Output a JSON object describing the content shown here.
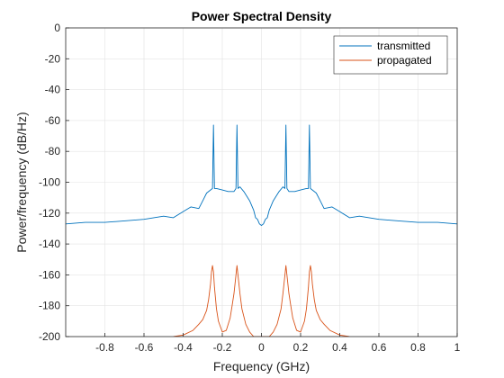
{
  "chart_data": {
    "type": "line",
    "title": "Power Spectral Density",
    "xlabel": "Frequency (GHz)",
    "ylabel": "Power/frequency (dB/Hz)",
    "xlim": [
      -1,
      1
    ],
    "ylim": [
      -200,
      0
    ],
    "x_ticks": [
      -0.8,
      -0.6,
      -0.4,
      -0.2,
      0,
      0.2,
      0.4,
      0.6,
      0.8,
      1
    ],
    "x_tick_labels": [
      "-0.8",
      "-0.6",
      "-0.4",
      "-0.2",
      "0",
      "0.2",
      "0.4",
      "0.6",
      "0.8",
      "1"
    ],
    "y_ticks": [
      0,
      -20,
      -40,
      -60,
      -80,
      -100,
      -120,
      -140,
      -160,
      -180,
      -200
    ],
    "y_tick_labels": [
      "0",
      "-20",
      "-40",
      "-60",
      "-80",
      "-100",
      "-120",
      "-140",
      "-160",
      "-180",
      "-200"
    ],
    "grid": true,
    "legend_position": "top-right",
    "series": [
      {
        "name": "transmitted",
        "color": "#0072BD",
        "x": [
          -1.0,
          -0.9,
          -0.8,
          -0.7,
          -0.6,
          -0.55,
          -0.5,
          -0.45,
          -0.4,
          -0.36,
          -0.32,
          -0.3,
          -0.28,
          -0.26,
          -0.25,
          -0.245,
          -0.24,
          -0.23,
          -0.2,
          -0.17,
          -0.14,
          -0.13,
          -0.125,
          -0.12,
          -0.11,
          -0.09,
          -0.06,
          -0.04,
          -0.03,
          -0.02,
          -0.01,
          0.0,
          0.01,
          0.02,
          0.03,
          0.04,
          0.06,
          0.09,
          0.11,
          0.12,
          0.125,
          0.13,
          0.14,
          0.17,
          0.2,
          0.23,
          0.24,
          0.245,
          0.25,
          0.26,
          0.28,
          0.3,
          0.32,
          0.36,
          0.4,
          0.45,
          0.5,
          0.55,
          0.6,
          0.7,
          0.8,
          0.9,
          1.0
        ],
        "y": [
          -127,
          -126,
          -126,
          -125,
          -124,
          -123,
          -122,
          -123,
          -119,
          -116,
          -117,
          -112,
          -107,
          -105,
          -104,
          -63,
          -104,
          -104,
          -105,
          -106,
          -106,
          -104,
          -63,
          -104,
          -103,
          -106,
          -112,
          -118,
          -123,
          -124,
          -127,
          -128,
          -127,
          -124,
          -123,
          -118,
          -112,
          -106,
          -103,
          -104,
          -63,
          -104,
          -106,
          -106,
          -105,
          -104,
          -104,
          -63,
          -104,
          -105,
          -107,
          -112,
          -117,
          -116,
          -119,
          -123,
          -122,
          -123,
          -124,
          -125,
          -126,
          -126,
          -127
        ]
      },
      {
        "name": "propagated",
        "color": "#D95319",
        "x": [
          -0.45,
          -0.4,
          -0.35,
          -0.32,
          -0.3,
          -0.28,
          -0.27,
          -0.26,
          -0.255,
          -0.25,
          -0.245,
          -0.24,
          -0.23,
          -0.22,
          -0.2,
          -0.18,
          -0.16,
          -0.15,
          -0.14,
          -0.13,
          -0.125,
          -0.12,
          -0.11,
          -0.1,
          -0.08,
          -0.06,
          -0.04,
          0.04,
          0.06,
          0.08,
          0.1,
          0.11,
          0.12,
          0.125,
          0.13,
          0.14,
          0.15,
          0.16,
          0.18,
          0.2,
          0.22,
          0.23,
          0.24,
          0.245,
          0.25,
          0.255,
          0.26,
          0.27,
          0.28,
          0.3,
          0.32,
          0.35,
          0.4,
          0.45
        ],
        "y": [
          -200,
          -199,
          -196,
          -192,
          -189,
          -183,
          -176,
          -166,
          -158,
          -154,
          -158,
          -168,
          -182,
          -190,
          -197,
          -196,
          -188,
          -180,
          -172,
          -160,
          -154,
          -160,
          -172,
          -182,
          -192,
          -197,
          -200,
          -200,
          -197,
          -192,
          -182,
          -172,
          -160,
          -154,
          -160,
          -172,
          -180,
          -188,
          -196,
          -197,
          -190,
          -182,
          -168,
          -158,
          -154,
          -158,
          -166,
          -176,
          -183,
          -189,
          -192,
          -196,
          -199,
          -200
        ]
      }
    ]
  }
}
